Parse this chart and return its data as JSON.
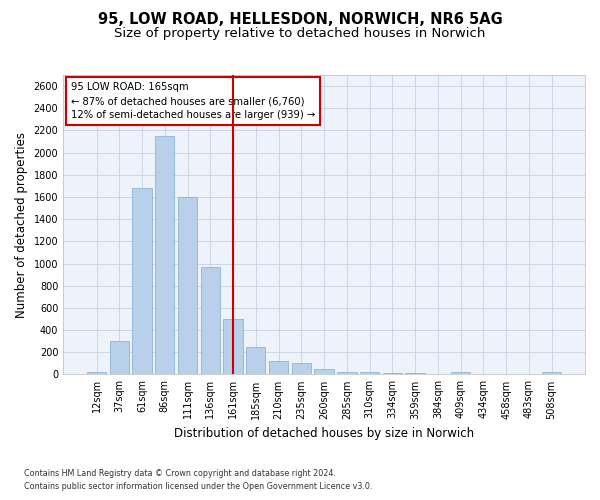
{
  "title1": "95, LOW ROAD, HELLESDON, NORWICH, NR6 5AG",
  "title2": "Size of property relative to detached houses in Norwich",
  "xlabel": "Distribution of detached houses by size in Norwich",
  "ylabel": "Number of detached properties",
  "categories": [
    "12sqm",
    "37sqm",
    "61sqm",
    "86sqm",
    "111sqm",
    "136sqm",
    "161sqm",
    "185sqm",
    "210sqm",
    "235sqm",
    "260sqm",
    "285sqm",
    "310sqm",
    "334sqm",
    "359sqm",
    "384sqm",
    "409sqm",
    "434sqm",
    "458sqm",
    "483sqm",
    "508sqm"
  ],
  "values": [
    20,
    300,
    1680,
    2150,
    1600,
    970,
    500,
    248,
    120,
    100,
    48,
    20,
    18,
    15,
    10,
    8,
    20,
    5,
    5,
    5,
    20
  ],
  "bar_color": "#b8d0ea",
  "bar_edgecolor": "#7aadd4",
  "vline_x_index": 6,
  "vline_color": "#cc0000",
  "annotation_text": "95 LOW ROAD: 165sqm\n← 87% of detached houses are smaller (6,760)\n12% of semi-detached houses are larger (939) →",
  "annotation_box_edgecolor": "#cc0000",
  "ylim": [
    0,
    2700
  ],
  "yticks": [
    0,
    200,
    400,
    600,
    800,
    1000,
    1200,
    1400,
    1600,
    1800,
    2000,
    2200,
    2400,
    2600
  ],
  "footnote1": "Contains HM Land Registry data © Crown copyright and database right 2024.",
  "footnote2": "Contains public sector information licensed under the Open Government Licence v3.0.",
  "bg_color": "#eef2fa",
  "grid_color": "#c8d0df",
  "title1_fontsize": 10.5,
  "title2_fontsize": 9.5,
  "tick_fontsize": 7,
  "ylabel_fontsize": 8.5,
  "xlabel_fontsize": 8.5,
  "footnote_fontsize": 5.8
}
